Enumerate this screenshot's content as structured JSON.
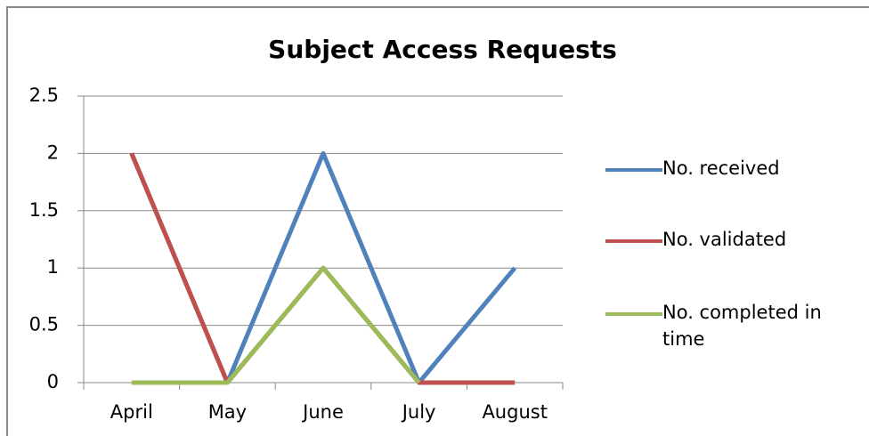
{
  "chart_data": {
    "type": "line",
    "title": "Subject Access Requests",
    "categories": [
      "April",
      "May",
      "June",
      "July",
      "August"
    ],
    "series": [
      {
        "name": "No. received",
        "color": "#4f81bd",
        "values": [
          2,
          0,
          2,
          0,
          1
        ]
      },
      {
        "name": "No. validated",
        "color": "#c0504d",
        "values": [
          2,
          0,
          1,
          0,
          0
        ]
      },
      {
        "name": "No. completed in time",
        "color": "#9bbb59",
        "values": [
          0,
          0,
          1,
          0,
          null
        ]
      }
    ],
    "ylim": [
      0,
      2.5
    ],
    "yticks": [
      0,
      0.5,
      1,
      1.5,
      2,
      2.5
    ],
    "grid": true,
    "legend": "right"
  }
}
